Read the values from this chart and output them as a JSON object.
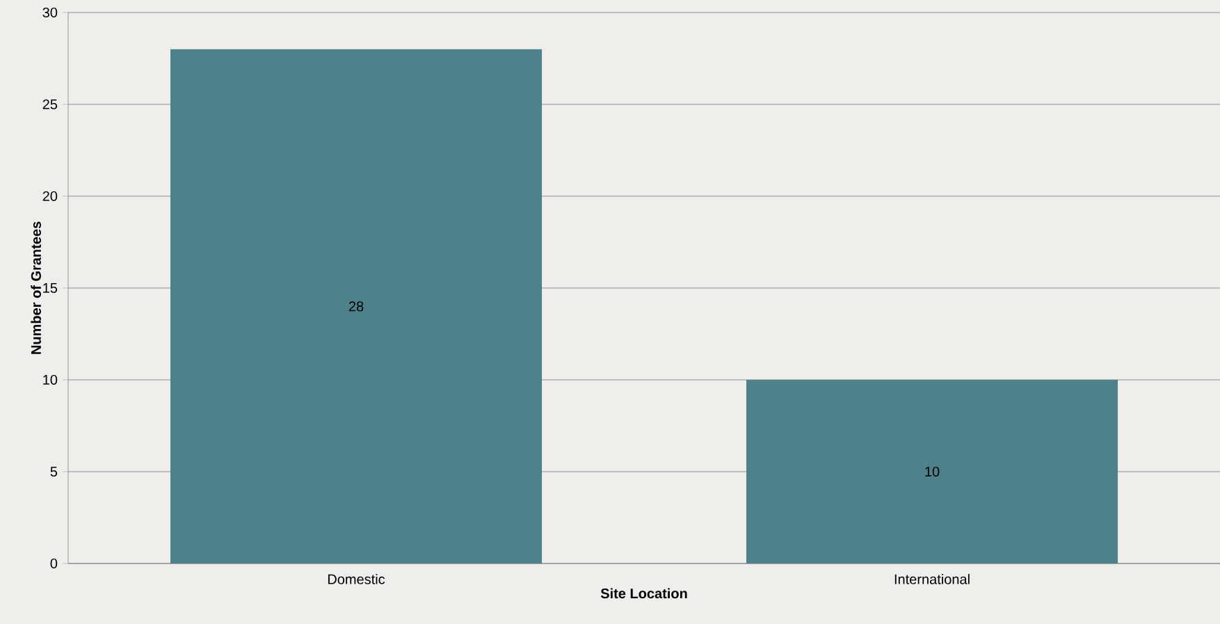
{
  "chart_data": {
    "type": "bar",
    "xlabel": "Site Location",
    "ylabel": "Number of Grantees",
    "categories": [
      "Domestic",
      "International"
    ],
    "values": [
      28,
      10
    ],
    "color": "#4f818b",
    "ylim": [
      0,
      30
    ],
    "yticks": [
      0,
      5,
      10,
      15,
      20,
      25,
      30
    ],
    "grid": "y",
    "data_labels": true
  }
}
